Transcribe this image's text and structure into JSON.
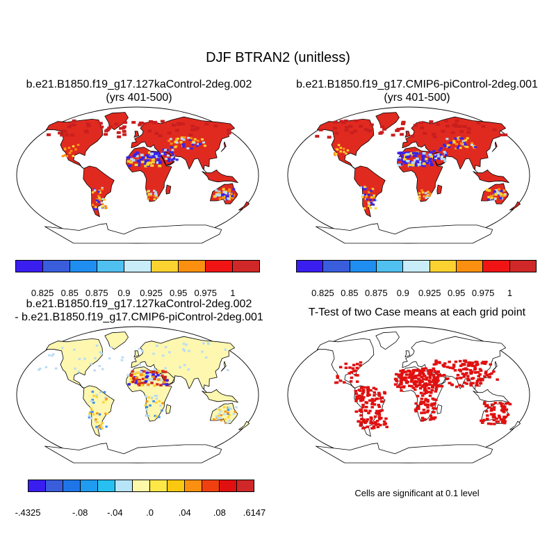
{
  "title": "DJF BTRAN2 (unitless)",
  "panels": {
    "top_left": {
      "title_line1": "b.e21.B1850.f19_g17.127kaControl-2deg.002",
      "title_line2": "(yrs 401-500)"
    },
    "top_right": {
      "title_line1": "b.e21.B1850.f19_g17.CMIP6-piControl-2deg.001",
      "title_line2": "(yrs 401-500)"
    },
    "bottom_left": {
      "title_line1": "b.e21.B1850.f19_g17.127kaControl-2deg.002",
      "title_line2": "- b.e21.B1850.f19_g17.CMIP6-piControl-2deg.001"
    },
    "bottom_right": {
      "title": "T-Test of two Case means at each grid point",
      "note": "Cells are significant at 0.1 level"
    }
  },
  "colorbar_abs": {
    "colors": [
      "#3a1ef0",
      "#3a5ddc",
      "#1f8ef0",
      "#4fc0f0",
      "#c8ecf8",
      "#fbd230",
      "#fb9010",
      "#f01414",
      "#d02828"
    ],
    "labels": [
      "0.825",
      "0.85",
      "0.875",
      "0.9",
      "0.925",
      "0.95",
      "0.975",
      "1"
    ]
  },
  "colorbar_diff": {
    "colors": [
      "#3a1ef0",
      "#3a5ddc",
      "#1f75e8",
      "#1f9cf0",
      "#28c0f0",
      "#b8e4f8",
      "#fdf9a8",
      "#fde848",
      "#fbc810",
      "#fb9010",
      "#f04010",
      "#e01010",
      "#d02828"
    ],
    "labels": [
      "-.4325",
      "-.08",
      "-.04",
      ".0",
      ".04",
      ".08",
      ".6147"
    ]
  },
  "map_colors": {
    "ocean": "#ffffff",
    "coast": "#000000",
    "red_main": "#e02a20",
    "red_dark": "#c81e1e",
    "blue": "#3a22e8",
    "light_blue": "#b8dcf4",
    "yellow": "#fbd230",
    "orange": "#fb9010",
    "pale_yellow": "#fdf7b0",
    "sig_red": "#e01010"
  }
}
